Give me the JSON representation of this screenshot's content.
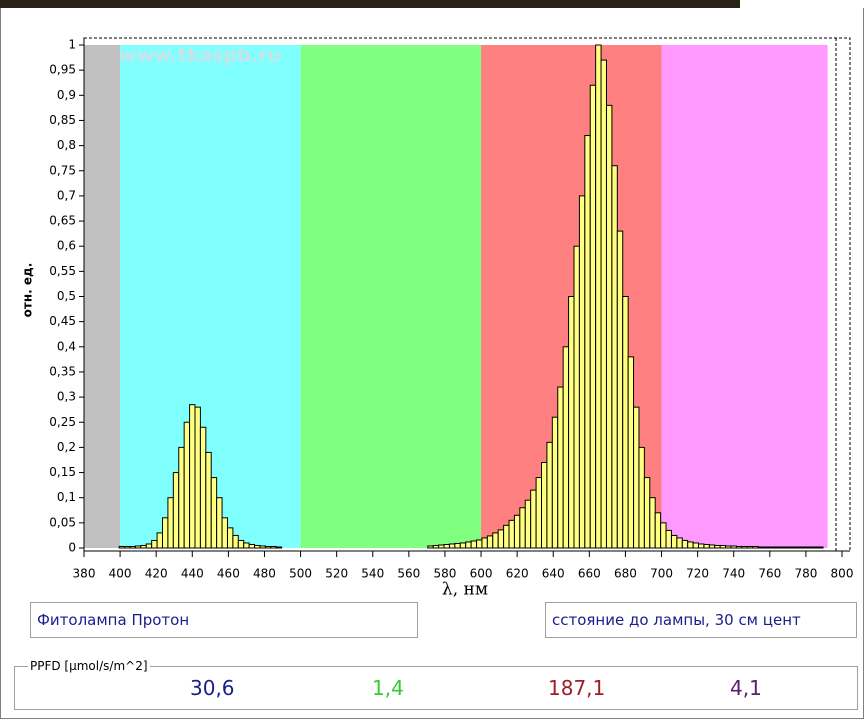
{
  "chart_data": {
    "type": "bar",
    "watermark": "www.tkaspb.ru",
    "ylabel": "отн. ед.",
    "xlabel": "λ, нм",
    "xlim": [
      380,
      800
    ],
    "ylim": [
      0,
      1
    ],
    "xticks": [
      380,
      400,
      420,
      440,
      460,
      480,
      500,
      520,
      540,
      560,
      580,
      600,
      620,
      640,
      660,
      680,
      700,
      720,
      740,
      760,
      780,
      800
    ],
    "yticks": [
      0,
      {
        "value": 0.05,
        "label": "0,05"
      },
      {
        "value": 0.1,
        "label": "0,1"
      },
      {
        "value": 0.15,
        "label": "0,15"
      },
      {
        "value": 0.2,
        "label": "0,2"
      },
      {
        "value": 0.25,
        "label": "0,25"
      },
      {
        "value": 0.3,
        "label": "0,3"
      },
      {
        "value": 0.35,
        "label": "0,35"
      },
      {
        "value": 0.4,
        "label": "0,4"
      },
      {
        "value": 0.45,
        "label": "0,45"
      },
      {
        "value": 0.5,
        "label": "0,5"
      },
      {
        "value": 0.55,
        "label": "0,55"
      },
      {
        "value": 0.6,
        "label": "0,6"
      },
      {
        "value": 0.65,
        "label": "0,65"
      },
      {
        "value": 0.7,
        "label": "0,7"
      },
      {
        "value": 0.75,
        "label": "0,75"
      },
      {
        "value": 0.8,
        "label": "0,8"
      },
      {
        "value": 0.85,
        "label": "0,85"
      },
      {
        "value": 0.9,
        "label": "0,9"
      },
      {
        "value": 0.95,
        "label": "0,95"
      },
      1
    ],
    "bands": [
      {
        "from": 380,
        "to": 400,
        "color": "#c0c0c0"
      },
      {
        "from": 400,
        "to": 500,
        "color": "#80ffff"
      },
      {
        "from": 500,
        "to": 600,
        "color": "#80ff80"
      },
      {
        "from": 600,
        "to": 700,
        "color": "#ff8080"
      },
      {
        "from": 700,
        "to": 792,
        "color": "#ff99ff"
      }
    ],
    "bar_width": 3,
    "color": "#ffff80",
    "x": [
      401,
      404,
      407,
      410,
      413,
      416,
      419,
      422,
      425,
      428,
      431,
      434,
      437,
      440,
      443,
      446,
      449,
      452,
      455,
      458,
      461,
      464,
      467,
      470,
      473,
      476,
      479,
      482,
      485,
      488,
      572,
      575,
      578,
      581,
      584,
      587,
      590,
      593,
      596,
      599,
      602,
      605,
      608,
      611,
      614,
      617,
      620,
      623,
      626,
      629,
      632,
      635,
      638,
      641,
      644,
      647,
      650,
      653,
      656,
      659,
      662,
      665,
      668,
      671,
      674,
      677,
      680,
      683,
      686,
      689,
      692,
      695,
      698,
      701,
      704,
      707,
      710,
      713,
      716,
      719,
      722,
      725,
      728,
      731,
      734,
      737,
      740,
      743,
      746,
      749,
      752,
      755,
      758,
      761,
      764,
      767,
      770,
      773,
      776,
      779,
      782,
      785,
      788
    ],
    "values": [
      0.003,
      0.003,
      0.003,
      0.004,
      0.005,
      0.008,
      0.015,
      0.03,
      0.06,
      0.1,
      0.15,
      0.2,
      0.25,
      0.285,
      0.28,
      0.24,
      0.19,
      0.14,
      0.1,
      0.06,
      0.04,
      0.025,
      0.015,
      0.01,
      0.007,
      0.005,
      0.004,
      0.003,
      0.003,
      0.002,
      0.004,
      0.005,
      0.006,
      0.007,
      0.008,
      0.009,
      0.01,
      0.012,
      0.014,
      0.016,
      0.02,
      0.024,
      0.03,
      0.036,
      0.045,
      0.055,
      0.065,
      0.08,
      0.095,
      0.115,
      0.14,
      0.17,
      0.21,
      0.26,
      0.32,
      0.4,
      0.5,
      0.6,
      0.7,
      0.82,
      0.92,
      1.0,
      0.97,
      0.88,
      0.76,
      0.63,
      0.5,
      0.38,
      0.28,
      0.2,
      0.14,
      0.1,
      0.07,
      0.05,
      0.035,
      0.025,
      0.02,
      0.015,
      0.012,
      0.01,
      0.008,
      0.007,
      0.006,
      0.005,
      0.005,
      0.004,
      0.004,
      0.003,
      0.003,
      0.003,
      0.003,
      0.002,
      0.002,
      0.002,
      0.002,
      0.002,
      0.002,
      0.002,
      0.002,
      0.002,
      0.002,
      0.002,
      0.002
    ]
  },
  "lamp_name": "Фитолампа Протон",
  "distance": "сстояние до лампы, 30 см цент",
  "ppfd": {
    "label": "PPFD [µmol/s/m^2]",
    "values": [
      "30,6",
      "1,4",
      "187,1",
      "4,1"
    ]
  }
}
